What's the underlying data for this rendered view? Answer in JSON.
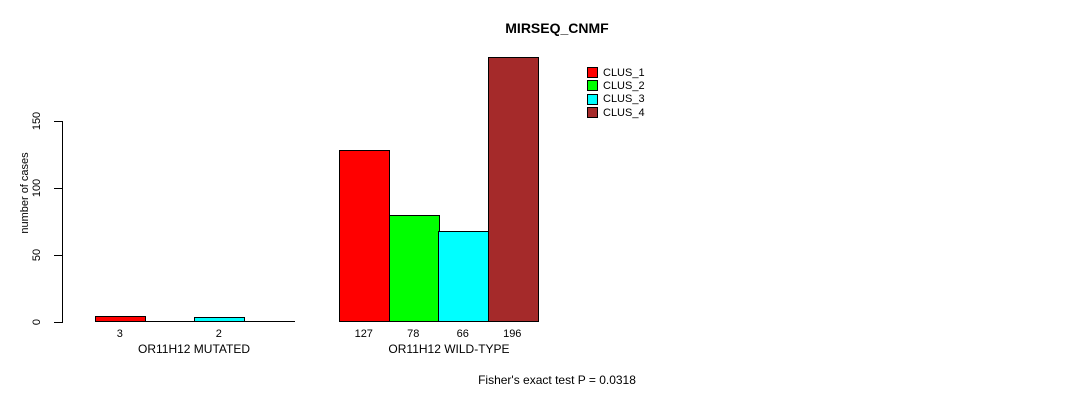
{
  "chart_data": {
    "type": "bar",
    "title": "MIRSEQ_CNMF",
    "ylabel": "number of cases",
    "xlabel": "",
    "ylim": [
      0,
      150
    ],
    "yticks": [
      0,
      50,
      100,
      150
    ],
    "ytick_labels": [
      "0",
      "50",
      "100",
      "150"
    ],
    "grid": false,
    "legend_position": "top-right",
    "axis_color": "#000000",
    "background_color": "#FFFFFF",
    "series_colors": [
      "#FF0000",
      "#00FF00",
      "#00FFFF",
      "#A52A2A"
    ],
    "legend": [
      {
        "label": "CLUS_1",
        "color": "#FF0000"
      },
      {
        "label": "CLUS_2",
        "color": "#00FF00"
      },
      {
        "label": "CLUS_3",
        "color": "#00FFFF"
      },
      {
        "label": "CLUS_4",
        "color": "#A52A2A"
      }
    ],
    "groups": [
      {
        "label": "OR11H12 MUTATED",
        "values": [
          3,
          0,
          2,
          0
        ],
        "bar_labels": [
          "3",
          "",
          "2",
          ""
        ]
      },
      {
        "label": "OR11H12 WILD-TYPE",
        "values": [
          127,
          78,
          66,
          196
        ],
        "bar_labels": [
          "127",
          "78",
          "66",
          "196"
        ]
      }
    ],
    "annotation": "Fisher's exact test P = 0.0318"
  }
}
